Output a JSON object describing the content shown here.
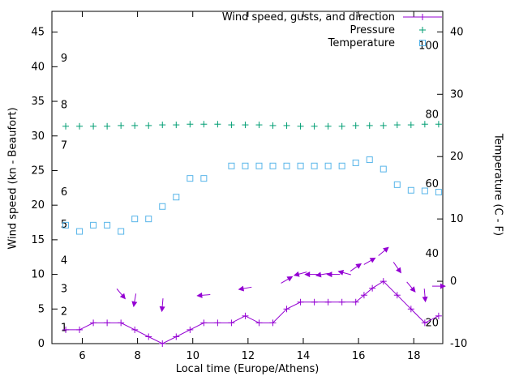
{
  "chart_data": {
    "type": "line",
    "title": "",
    "xlabel": "Local time (Europe/Athens)",
    "ylabel_left": "Wind speed (kn - Beaufort)",
    "ylabel_right": "Temperature (C - F)",
    "x_range": [
      4.9,
      19.05
    ],
    "y_left_range": [
      0,
      48
    ],
    "y_right_range": [
      -10,
      43.3
    ],
    "x_ticks": [
      6,
      8,
      10,
      12,
      14,
      16,
      18
    ],
    "y_left_ticks": [
      0,
      5,
      10,
      15,
      20,
      25,
      30,
      35,
      40,
      45
    ],
    "y_right_ticks": [
      -10,
      0,
      10,
      20,
      30,
      40
    ],
    "grid": false,
    "legend_position": "top-right-inside",
    "beaufort_scale_labels": [
      {
        "label": "1",
        "kn": 2.3
      },
      {
        "label": "2",
        "kn": 4.6
      },
      {
        "label": "3",
        "kn": 7.9
      },
      {
        "label": "4",
        "kn": 12.0
      },
      {
        "label": "5",
        "kn": 17.2
      },
      {
        "label": "6",
        "kn": 21.9
      },
      {
        "label": "7",
        "kn": 28.6
      },
      {
        "label": "8",
        "kn": 34.5
      },
      {
        "label": "9",
        "kn": 41.2
      }
    ],
    "fahrenheit_scale_labels": [
      {
        "label": "20",
        "c": -6.7
      },
      {
        "label": "40",
        "c": 4.4
      },
      {
        "label": "60",
        "c": 15.6
      },
      {
        "label": "80",
        "c": 26.7
      },
      {
        "label": "100",
        "c": 37.8
      }
    ],
    "series": [
      {
        "name": "Wind speed, gusts, and direction",
        "axis": "left",
        "units": "kn",
        "color": "#9400d3",
        "marker": "plus",
        "line": true,
        "x": [
          5.4,
          5.9,
          6.4,
          6.9,
          7.4,
          7.9,
          8.4,
          8.9,
          9.4,
          9.9,
          10.4,
          10.9,
          11.4,
          11.9,
          12.4,
          12.9,
          13.4,
          13.9,
          14.4,
          14.9,
          15.4,
          15.9,
          16.2,
          16.5,
          16.9,
          17.4,
          17.9,
          18.4,
          18.9
        ],
        "y": [
          2,
          2,
          3,
          3,
          3,
          2,
          1,
          0,
          1,
          2,
          3,
          3,
          3,
          4,
          3,
          3,
          5,
          6,
          6,
          6,
          6,
          6,
          7,
          8,
          9,
          7,
          5,
          3,
          4
        ]
      },
      {
        "name": "Pressure",
        "axis": "left",
        "units": "plotted on left scale",
        "color": "#009e73",
        "marker": "plus",
        "line": false,
        "x": [
          5.4,
          5.9,
          6.4,
          6.9,
          7.4,
          7.9,
          8.4,
          8.9,
          9.4,
          9.9,
          10.4,
          10.9,
          11.4,
          11.9,
          12.4,
          12.9,
          13.4,
          13.9,
          14.4,
          14.9,
          15.4,
          15.9,
          16.4,
          16.9,
          17.4,
          17.9,
          18.4,
          18.9
        ],
        "y": [
          31.4,
          31.4,
          31.4,
          31.4,
          31.5,
          31.5,
          31.5,
          31.6,
          31.6,
          31.7,
          31.7,
          31.7,
          31.6,
          31.6,
          31.6,
          31.5,
          31.5,
          31.4,
          31.4,
          31.4,
          31.4,
          31.5,
          31.5,
          31.5,
          31.6,
          31.6,
          31.7,
          31.7
        ]
      },
      {
        "name": "Temperature",
        "axis": "right",
        "units": "C",
        "color": "#56b4e9",
        "marker": "square",
        "line": false,
        "x": [
          5.4,
          5.9,
          6.4,
          6.9,
          7.4,
          7.9,
          8.4,
          8.9,
          9.4,
          9.9,
          10.4,
          11.4,
          11.9,
          12.4,
          12.9,
          13.4,
          13.9,
          14.4,
          14.9,
          15.4,
          15.9,
          16.4,
          16.9,
          17.4,
          17.9,
          18.4,
          18.9
        ],
        "y": [
          9,
          8,
          9,
          9,
          8,
          10,
          10,
          12,
          13.5,
          16.5,
          16.5,
          18.5,
          18.5,
          18.5,
          18.5,
          18.5,
          18.5,
          18.5,
          18.5,
          18.5,
          19,
          19.5,
          18,
          15.5,
          14.6,
          14.5,
          14.3
        ]
      }
    ],
    "wind_direction_arrows": {
      "color": "#9400d3",
      "points": [
        {
          "x": 7.4,
          "y": 7.2,
          "angle_deg": -50
        },
        {
          "x": 7.9,
          "y": 6.3,
          "angle_deg": -100
        },
        {
          "x": 8.9,
          "y": 5.6,
          "angle_deg": -95
        },
        {
          "x": 10.4,
          "y": 7.0,
          "angle_deg": 185
        },
        {
          "x": 11.9,
          "y": 8.0,
          "angle_deg": 190
        },
        {
          "x": 13.4,
          "y": 9.2,
          "angle_deg": 30
        },
        {
          "x": 13.9,
          "y": 10.1,
          "angle_deg": 195
        },
        {
          "x": 14.3,
          "y": 10.0,
          "angle_deg": 180
        },
        {
          "x": 14.7,
          "y": 10.0,
          "angle_deg": 190
        },
        {
          "x": 15.1,
          "y": 10.0,
          "angle_deg": 180
        },
        {
          "x": 15.5,
          "y": 10.2,
          "angle_deg": 165
        },
        {
          "x": 15.9,
          "y": 11.0,
          "angle_deg": 35
        },
        {
          "x": 16.4,
          "y": 11.9,
          "angle_deg": 30
        },
        {
          "x": 16.9,
          "y": 13.3,
          "angle_deg": 40
        },
        {
          "x": 17.4,
          "y": 11.0,
          "angle_deg": -55
        },
        {
          "x": 17.9,
          "y": 8.2,
          "angle_deg": -50
        },
        {
          "x": 18.4,
          "y": 7.0,
          "angle_deg": -85
        },
        {
          "x": 18.9,
          "y": 8.3,
          "angle_deg": 0
        }
      ]
    },
    "legend": {
      "items": [
        "Wind speed, gusts, and direction",
        "Pressure",
        "Temperature"
      ]
    }
  }
}
